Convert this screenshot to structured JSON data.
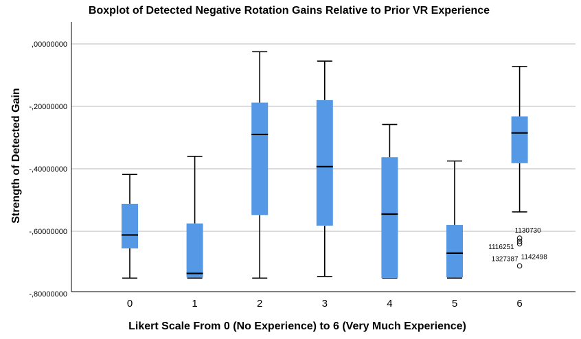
{
  "chart_data": {
    "type": "boxplot",
    "title": "Boxplot of Detected Negative Rotation Gains Relative to Prior VR Experience",
    "xlabel": "Likert Scale From 0 (No Experience) to 6 (Very Much Experience)",
    "ylabel": "Strength of Detected Gain",
    "categories": [
      "0",
      "1",
      "2",
      "3",
      "4",
      "5",
      "6"
    ],
    "ylim": [
      -0.8,
      0.08
    ],
    "yticks": [
      0.0,
      -0.2,
      -0.4,
      -0.6,
      -0.8
    ],
    "ytick_labels": [
      ",00000000",
      "-,20000000",
      "-,40000000",
      "-,60000000",
      "-,80000000"
    ],
    "grid": "horizontal",
    "box_color": "#5599e6",
    "boxes": [
      {
        "category": "0",
        "whisker_low": -0.75,
        "q1": -0.655,
        "median": -0.612,
        "q3": -0.512,
        "whisker_high": -0.418
      },
      {
        "category": "1",
        "whisker_low": -0.75,
        "q1": -0.748,
        "median": -0.735,
        "q3": -0.575,
        "whisker_high": -0.36
      },
      {
        "category": "2",
        "whisker_low": -0.75,
        "q1": -0.548,
        "median": -0.29,
        "q3": -0.188,
        "whisker_high": -0.025
      },
      {
        "category": "3",
        "whisker_low": -0.745,
        "q1": -0.582,
        "median": -0.393,
        "q3": -0.18,
        "whisker_high": -0.055
      },
      {
        "category": "4",
        "whisker_low": -0.75,
        "q1": -0.75,
        "median": -0.545,
        "q3": -0.363,
        "whisker_high": -0.258
      },
      {
        "category": "5",
        "whisker_low": -0.75,
        "q1": -0.748,
        "median": -0.67,
        "q3": -0.58,
        "whisker_high": -0.375
      },
      {
        "category": "6",
        "whisker_low": -0.538,
        "q1": -0.382,
        "median": -0.285,
        "q3": -0.232,
        "whisker_high": -0.072
      }
    ],
    "outliers": [
      {
        "category": "6",
        "value": -0.622,
        "label": "1130730"
      },
      {
        "category": "6",
        "value": -0.64,
        "label": "1116251"
      },
      {
        "category": "6",
        "value": -0.632,
        "label": "1142498"
      },
      {
        "category": "6",
        "value": -0.711,
        "label": "1327387"
      }
    ]
  }
}
